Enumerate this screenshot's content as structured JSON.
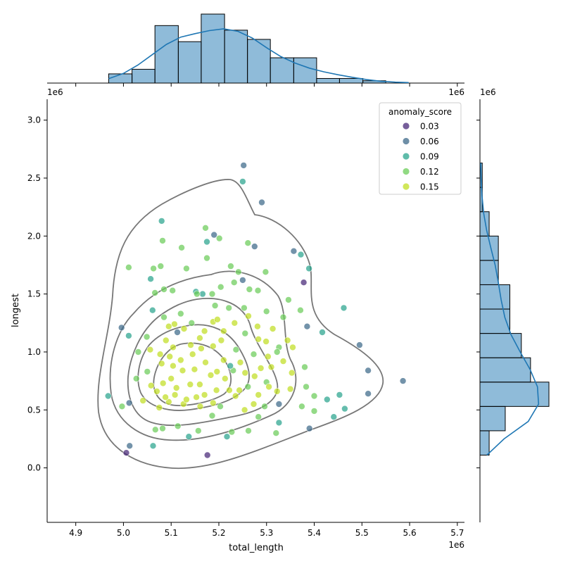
{
  "chart_data": {
    "type": "scatter",
    "xlabel": "total_length",
    "ylabel": "longest",
    "x_offset_label": "1e6",
    "y_offset_label": "1e6",
    "xlim": [
      4.84,
      5.715
    ],
    "ylim": [
      -0.47,
      3.18
    ],
    "x_ticks": [
      "4.9",
      "5.0",
      "5.1",
      "5.2",
      "5.3",
      "5.4",
      "5.5",
      "5.6",
      "5.7"
    ],
    "y_ticks": [
      "0.0",
      "0.5",
      "1.0",
      "1.5",
      "2.0",
      "2.5",
      "3.0"
    ],
    "legend": {
      "title": "anomaly_score",
      "position": "top-right",
      "entries": [
        {
          "label": "0.03",
          "color": "#482878"
        },
        {
          "label": "0.06",
          "color": "#3e6a8a"
        },
        {
          "label": "0.09",
          "color": "#2aa58e"
        },
        {
          "label": "0.12",
          "color": "#6ccd5a"
        },
        {
          "label": "0.15",
          "color": "#c2df23"
        }
      ]
    },
    "points": [
      [
        5.252,
        2.61,
        0.06
      ],
      [
        5.25,
        2.47,
        0.09
      ],
      [
        5.29,
        2.29,
        0.06
      ],
      [
        5.19,
        2.01,
        0.06
      ],
      [
        5.275,
        1.91,
        0.06
      ],
      [
        5.357,
        1.87,
        0.06
      ],
      [
        5.378,
        1.6,
        0.03
      ],
      [
        5.25,
        1.62,
        0.06
      ],
      [
        5.385,
        1.22,
        0.06
      ],
      [
        5.495,
        1.06,
        0.06
      ],
      [
        5.513,
        0.84,
        0.06
      ],
      [
        5.513,
        0.64,
        0.06
      ],
      [
        5.586,
        0.75,
        0.06
      ],
      [
        5.39,
        0.34,
        0.06
      ],
      [
        5.006,
        0.13,
        0.03
      ],
      [
        5.176,
        0.11,
        0.03
      ],
      [
        5.013,
        0.19,
        0.06
      ],
      [
        4.996,
        1.21,
        0.06
      ],
      [
        5.113,
        1.17,
        0.06
      ],
      [
        5.326,
        0.55,
        0.06
      ],
      [
        5.08,
        2.13,
        0.09
      ],
      [
        5.175,
        1.95,
        0.09
      ],
      [
        5.172,
        2.07,
        0.12
      ],
      [
        5.201,
        1.98,
        0.12
      ],
      [
        5.261,
        1.94,
        0.12
      ],
      [
        5.372,
        1.84,
        0.09
      ],
      [
        5.122,
        1.9,
        0.12
      ],
      [
        5.082,
        1.96,
        0.12
      ],
      [
        5.011,
        1.73,
        0.12
      ],
      [
        5.078,
        1.74,
        0.12
      ],
      [
        5.057,
        1.63,
        0.09
      ],
      [
        5.063,
        1.72,
        0.12
      ],
      [
        5.132,
        1.72,
        0.12
      ],
      [
        5.175,
        1.81,
        0.12
      ],
      [
        5.225,
        1.74,
        0.12
      ],
      [
        5.232,
        1.6,
        0.12
      ],
      [
        5.264,
        1.54,
        0.12
      ],
      [
        5.282,
        1.53,
        0.12
      ],
      [
        5.298,
        1.69,
        0.12
      ],
      [
        5.346,
        1.45,
        0.12
      ],
      [
        5.389,
        1.72,
        0.09
      ],
      [
        5.462,
        1.38,
        0.09
      ],
      [
        5.417,
        1.17,
        0.09
      ],
      [
        5.371,
        1.36,
        0.12
      ],
      [
        5.335,
        1.3,
        0.12
      ],
      [
        5.085,
        1.54,
        0.12
      ],
      [
        5.103,
        1.53,
        0.12
      ],
      [
        5.152,
        1.52,
        0.09
      ],
      [
        5.166,
        1.5,
        0.09
      ],
      [
        5.186,
        1.5,
        0.12
      ],
      [
        5.204,
        1.56,
        0.12
      ],
      [
        5.241,
        1.69,
        0.12
      ],
      [
        5.061,
        1.36,
        0.09
      ],
      [
        5.085,
        1.3,
        0.12
      ],
      [
        5.12,
        1.33,
        0.12
      ],
      [
        5.143,
        1.25,
        0.12
      ],
      [
        5.192,
        1.4,
        0.12
      ],
      [
        5.221,
        1.38,
        0.12
      ],
      [
        5.253,
        1.38,
        0.12
      ],
      [
        5.3,
        1.35,
        0.12
      ],
      [
        5.011,
        1.14,
        0.09
      ],
      [
        5.049,
        1.13,
        0.12
      ],
      [
        5.089,
        1.1,
        0.15
      ],
      [
        5.104,
        1.04,
        0.15
      ],
      [
        5.127,
        1.2,
        0.15
      ],
      [
        5.16,
        1.12,
        0.15
      ],
      [
        5.188,
        1.26,
        0.15
      ],
      [
        5.21,
        1.18,
        0.15
      ],
      [
        5.233,
        1.25,
        0.15
      ],
      [
        5.262,
        1.31,
        0.15
      ],
      [
        5.281,
        1.22,
        0.15
      ],
      [
        5.313,
        1.2,
        0.15
      ],
      [
        5.344,
        1.1,
        0.15
      ],
      [
        5.355,
        1.04,
        0.15
      ],
      [
        5.326,
        1.04,
        0.12
      ],
      [
        5.303,
        0.96,
        0.15
      ],
      [
        5.273,
        0.98,
        0.12
      ],
      [
        5.236,
        1.02,
        0.12
      ],
      [
        5.205,
        1.1,
        0.15
      ],
      [
        5.188,
        1.05,
        0.15
      ],
      [
        5.163,
        1.03,
        0.15
      ],
      [
        5.145,
        0.98,
        0.15
      ],
      [
        5.12,
        0.93,
        0.15
      ],
      [
        5.097,
        0.96,
        0.15
      ],
      [
        5.077,
        0.98,
        0.15
      ],
      [
        5.056,
        1.02,
        0.15
      ],
      [
        5.031,
        1.0,
        0.12
      ],
      [
        5.027,
        0.77,
        0.12
      ],
      [
        5.058,
        0.71,
        0.15
      ],
      [
        5.083,
        0.73,
        0.15
      ],
      [
        5.1,
        0.77,
        0.15
      ],
      [
        5.111,
        0.69,
        0.15
      ],
      [
        5.14,
        0.72,
        0.15
      ],
      [
        5.16,
        0.72,
        0.15
      ],
      [
        5.183,
        0.8,
        0.15
      ],
      [
        5.196,
        0.83,
        0.15
      ],
      [
        5.213,
        0.77,
        0.15
      ],
      [
        5.23,
        0.84,
        0.12
      ],
      [
        5.255,
        0.82,
        0.15
      ],
      [
        5.275,
        0.79,
        0.15
      ],
      [
        5.3,
        0.74,
        0.12
      ],
      [
        5.322,
        0.66,
        0.15
      ],
      [
        5.35,
        0.68,
        0.15
      ],
      [
        5.383,
        0.7,
        0.12
      ],
      [
        5.4,
        0.62,
        0.12
      ],
      [
        4.968,
        0.62,
        0.09
      ],
      [
        4.997,
        0.53,
        0.12
      ],
      [
        5.041,
        0.58,
        0.15
      ],
      [
        5.075,
        0.52,
        0.15
      ],
      [
        5.095,
        0.57,
        0.15
      ],
      [
        5.126,
        0.55,
        0.15
      ],
      [
        5.161,
        0.53,
        0.15
      ],
      [
        5.188,
        0.56,
        0.15
      ],
      [
        5.203,
        0.53,
        0.12
      ],
      [
        5.235,
        0.62,
        0.15
      ],
      [
        5.254,
        0.5,
        0.15
      ],
      [
        5.273,
        0.55,
        0.15
      ],
      [
        5.296,
        0.53,
        0.12
      ],
      [
        5.326,
        0.39,
        0.09
      ],
      [
        5.374,
        0.53,
        0.12
      ],
      [
        5.4,
        0.49,
        0.12
      ],
      [
        5.441,
        0.44,
        0.09
      ],
      [
        5.464,
        0.51,
        0.09
      ],
      [
        5.453,
        0.63,
        0.09
      ],
      [
        5.427,
        0.59,
        0.09
      ],
      [
        5.067,
        0.33,
        0.12
      ],
      [
        5.082,
        0.34,
        0.12
      ],
      [
        5.114,
        0.36,
        0.12
      ],
      [
        5.137,
        0.27,
        0.09
      ],
      [
        5.157,
        0.32,
        0.12
      ],
      [
        5.186,
        0.45,
        0.12
      ],
      [
        5.217,
        0.27,
        0.09
      ],
      [
        5.227,
        0.31,
        0.12
      ],
      [
        5.262,
        0.32,
        0.12
      ],
      [
        5.283,
        0.44,
        0.12
      ],
      [
        5.32,
        0.3,
        0.12
      ],
      [
        5.062,
        0.19,
        0.09
      ],
      [
        5.012,
        0.56,
        0.06
      ],
      [
        5.154,
        1.5,
        0.12
      ],
      [
        5.224,
        0.88,
        0.09
      ],
      [
        5.172,
        0.91,
        0.15
      ],
      [
        5.149,
        0.85,
        0.15
      ],
      [
        5.124,
        0.84,
        0.15
      ],
      [
        5.21,
        0.93,
        0.15
      ],
      [
        5.245,
        0.91,
        0.15
      ],
      [
        5.261,
        0.7,
        0.12
      ],
      [
        5.288,
        0.86,
        0.15
      ],
      [
        5.31,
        0.87,
        0.15
      ],
      [
        5.335,
        0.92,
        0.15
      ],
      [
        5.353,
        0.82,
        0.15
      ],
      [
        5.38,
        0.87,
        0.12
      ],
      [
        5.305,
        0.7,
        0.15
      ],
      [
        5.283,
        0.63,
        0.15
      ],
      [
        5.243,
        0.67,
        0.15
      ],
      [
        5.222,
        0.67,
        0.15
      ],
      [
        5.195,
        0.67,
        0.15
      ],
      [
        5.17,
        0.63,
        0.15
      ],
      [
        5.153,
        0.61,
        0.15
      ],
      [
        5.132,
        0.59,
        0.15
      ],
      [
        5.108,
        0.63,
        0.15
      ],
      [
        5.088,
        0.61,
        0.15
      ],
      [
        5.07,
        0.66,
        0.15
      ],
      [
        5.05,
        0.83,
        0.12
      ],
      [
        5.08,
        0.9,
        0.15
      ],
      [
        5.104,
        0.88,
        0.15
      ],
      [
        5.255,
        1.16,
        0.12
      ],
      [
        5.283,
        1.11,
        0.15
      ],
      [
        5.299,
        1.09,
        0.15
      ],
      [
        5.322,
        1.0,
        0.12
      ],
      [
        5.141,
        1.06,
        0.15
      ],
      [
        5.17,
        1.18,
        0.15
      ],
      [
        5.107,
        1.24,
        0.15
      ],
      [
        5.066,
        1.51,
        0.12
      ],
      [
        5.095,
        1.22,
        0.15
      ],
      [
        5.197,
        1.28,
        0.15
      ]
    ],
    "marginal_x_hist": {
      "bin_edges": [
        4.969,
        5.018,
        5.066,
        5.115,
        5.163,
        5.212,
        5.26,
        5.308,
        5.357,
        5.405,
        5.453,
        5.502,
        5.55,
        5.598
      ],
      "counts": [
        4,
        6,
        25,
        18,
        30,
        23,
        19,
        11,
        11,
        2,
        2,
        1,
        0
      ],
      "kde": [
        [
          4.969,
          1.9
        ],
        [
          5.0,
          4.2
        ],
        [
          5.03,
          7.8
        ],
        [
          5.06,
          12.3
        ],
        [
          5.09,
          16.8
        ],
        [
          5.12,
          20.0
        ],
        [
          5.15,
          21.5
        ],
        [
          5.18,
          22.8
        ],
        [
          5.21,
          23.6
        ],
        [
          5.24,
          22.5
        ],
        [
          5.27,
          19.6
        ],
        [
          5.3,
          15.4
        ],
        [
          5.33,
          11.5
        ],
        [
          5.36,
          8.7
        ],
        [
          5.39,
          6.5
        ],
        [
          5.42,
          4.9
        ],
        [
          5.45,
          3.6
        ],
        [
          5.48,
          2.5
        ],
        [
          5.51,
          1.5
        ],
        [
          5.54,
          0.8
        ],
        [
          5.57,
          0.4
        ],
        [
          5.598,
          0.2
        ]
      ]
    },
    "marginal_y_hist": {
      "bin_edges": [
        0.11,
        0.32,
        0.53,
        0.74,
        0.95,
        1.16,
        1.37,
        1.58,
        1.79,
        2.0,
        2.21,
        2.42,
        2.63
      ],
      "counts": [
        4,
        11,
        30,
        22,
        18,
        13,
        13,
        8,
        8,
        4,
        1,
        1
      ],
      "kde": [
        [
          0.11,
          3.0
        ],
        [
          0.25,
          10.5
        ],
        [
          0.4,
          21.0
        ],
        [
          0.55,
          25.5
        ],
        [
          0.7,
          25.0
        ],
        [
          0.85,
          21.8
        ],
        [
          1.0,
          17.5
        ],
        [
          1.15,
          13.5
        ],
        [
          1.3,
          10.8
        ],
        [
          1.45,
          9.2
        ],
        [
          1.6,
          8.0
        ],
        [
          1.75,
          6.6
        ],
        [
          1.9,
          4.7
        ],
        [
          2.05,
          2.9
        ],
        [
          2.2,
          1.6
        ],
        [
          2.35,
          0.9
        ],
        [
          2.5,
          0.5
        ],
        [
          2.63,
          0.3
        ]
      ]
    }
  }
}
